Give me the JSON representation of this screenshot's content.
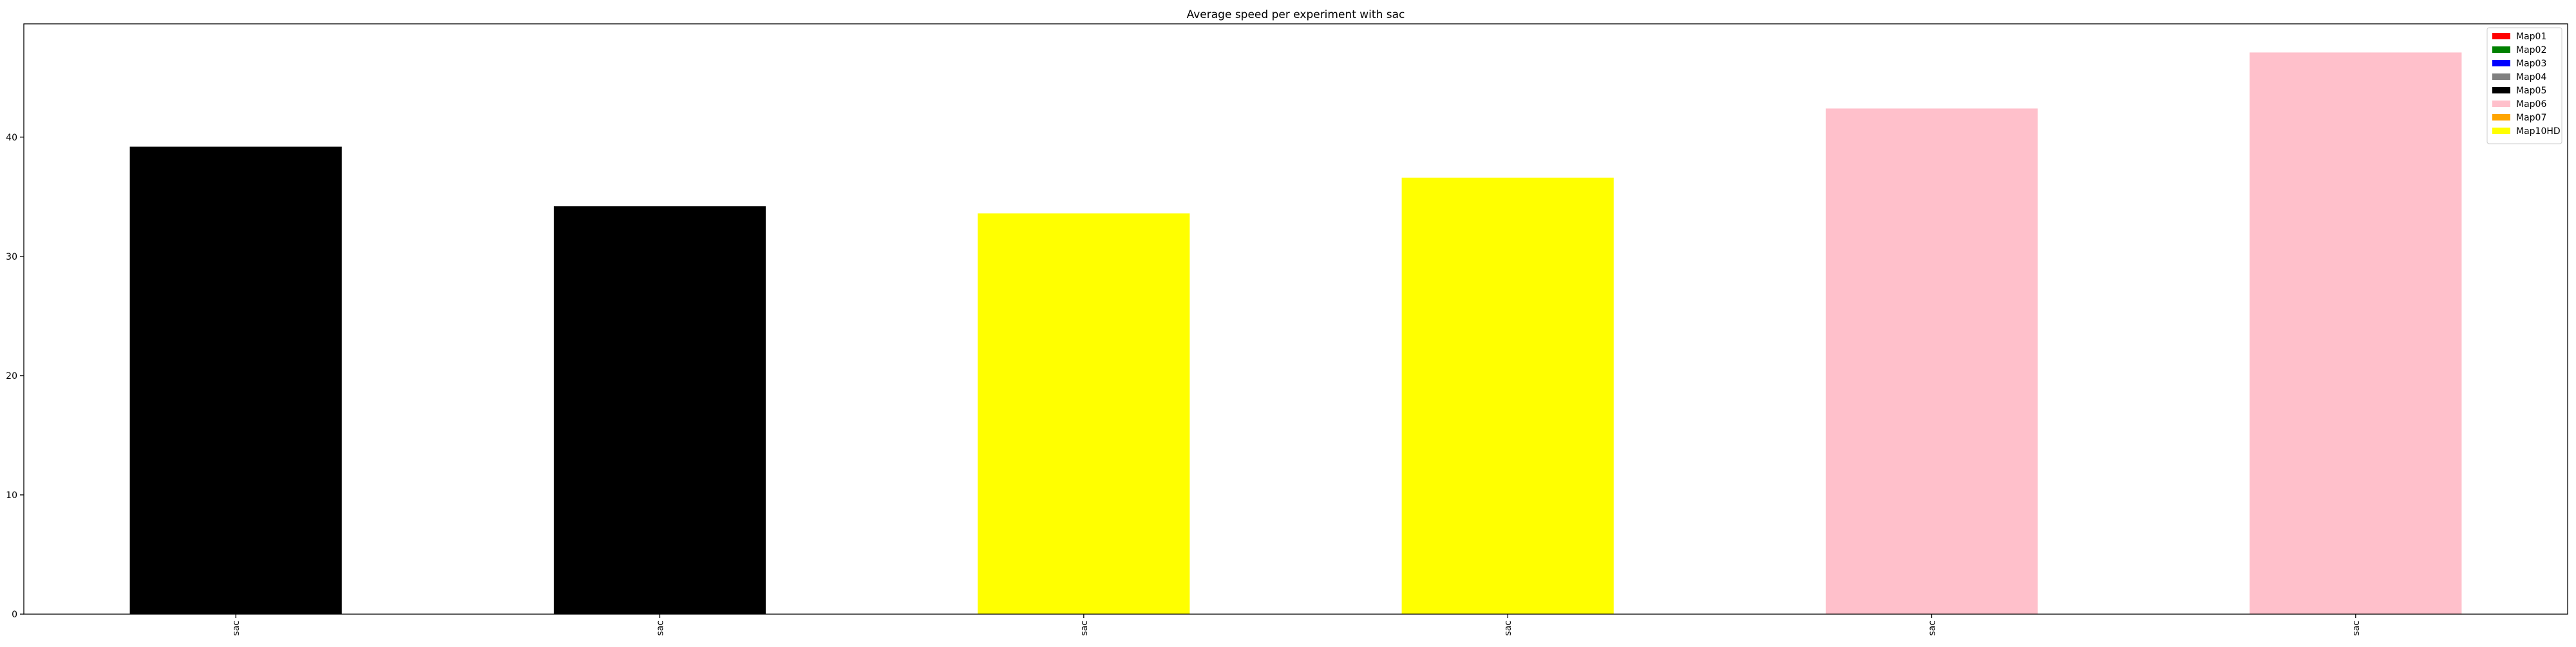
{
  "chart_data": {
    "type": "bar",
    "title": "Average speed per experiment with sac",
    "xlabel": "",
    "ylabel": "",
    "categories": [
      "sac",
      "sac",
      "sac",
      "sac",
      "sac",
      "sac"
    ],
    "values": [
      39.2,
      34.2,
      33.6,
      36.6,
      42.4,
      47.1
    ],
    "bar_colors": [
      "#000000",
      "#000000",
      "#ffff00",
      "#ffff00",
      "#ffc0cb",
      "#ffc0cb"
    ],
    "ylim": [
      0,
      49.5
    ],
    "yticks": [
      0,
      10,
      20,
      30,
      40
    ],
    "grid": false,
    "legend_position": "top-right",
    "legend": [
      {
        "label": "Map01",
        "color": "#ff0000"
      },
      {
        "label": "Map02",
        "color": "#008000"
      },
      {
        "label": "Map03",
        "color": "#0000ff"
      },
      {
        "label": "Map04",
        "color": "#808080"
      },
      {
        "label": "Map05",
        "color": "#000000"
      },
      {
        "label": "Map06",
        "color": "#ffc0cb"
      },
      {
        "label": "Map07",
        "color": "#ffa500"
      },
      {
        "label": "Map10HD",
        "color": "#ffff00"
      }
    ]
  }
}
